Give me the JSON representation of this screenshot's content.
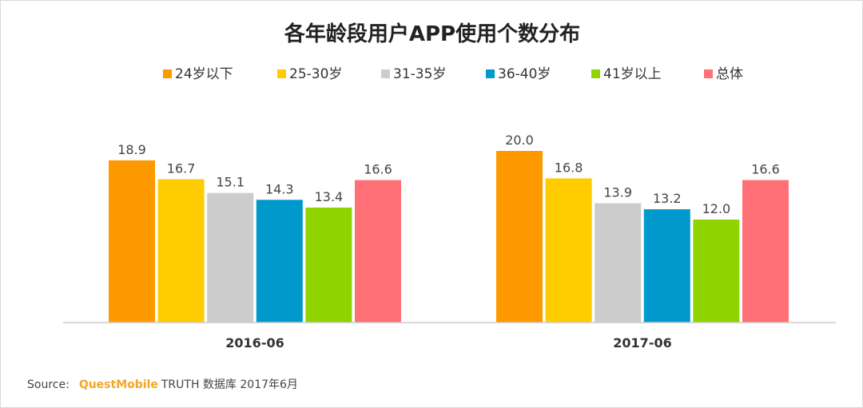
{
  "chart_data": {
    "type": "bar",
    "title": "各年龄段用户APP使用个数分布",
    "categories": [
      "2016-06",
      "2017-06"
    ],
    "series": [
      {
        "name": "24岁以下",
        "color": "#ff9900",
        "values": [
          18.9,
          20.0
        ]
      },
      {
        "name": "25-30岁",
        "color": "#ffcc00",
        "values": [
          16.7,
          16.8
        ]
      },
      {
        "name": "31-35岁",
        "color": "#cccccc",
        "values": [
          15.1,
          13.9
        ]
      },
      {
        "name": "36-40岁",
        "color": "#0099cc",
        "values": [
          14.3,
          13.2
        ]
      },
      {
        "name": "41岁以上",
        "color": "#8fd400",
        "values": [
          13.4,
          12.0
        ]
      },
      {
        "name": "总体",
        "color": "#ff7077",
        "values": [
          16.6,
          16.6
        ]
      }
    ],
    "ylim": [
      0,
      20
    ],
    "grid": false,
    "legend": "top"
  },
  "source": {
    "label": "Source:",
    "brand": "QuestMobile",
    "text": "TRUTH 数据库 2017年6月"
  }
}
